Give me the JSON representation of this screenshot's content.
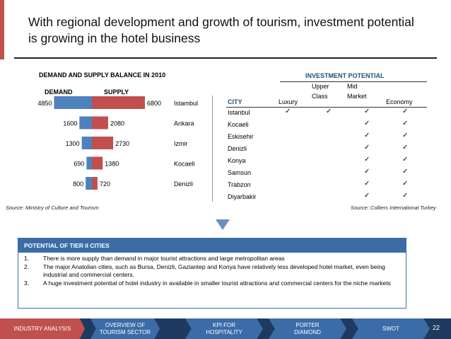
{
  "header": {
    "title": "With regional development and growth of tourism, investment potential is growing in the hotel business"
  },
  "demand_supply": {
    "title": "DEMAND AND SUPPLY BALANCE IN 2010",
    "source": "Source: Ministry of Culture and Tourism"
  },
  "chart_data": {
    "type": "bar",
    "title": "DEMAND AND SUPPLY BALANCE IN 2010",
    "categories": [
      "Istambul",
      "Ankara",
      "Izmir",
      "Kocaeli",
      "Denizli"
    ],
    "series": [
      {
        "name": "DEMAND",
        "values": [
          4850,
          1600,
          1300,
          690,
          800
        ],
        "color": "#4f81bd"
      },
      {
        "name": "SUPPLY",
        "values": [
          6800,
          2080,
          2730,
          1380,
          720
        ],
        "color": "#c0504d"
      }
    ]
  },
  "investment": {
    "title": "INVESTMENT POTENTIAL",
    "headers": {
      "city": "CITY",
      "luxury": "Luxury",
      "upper1": "Upper",
      "upper2": "Class",
      "mid1": "Mid",
      "mid2": "Market",
      "economy": "Economy"
    },
    "check_glyph": "✓",
    "rows": [
      {
        "city": "Istanbul",
        "luxury": true,
        "upper": true,
        "mid": true,
        "economy": true
      },
      {
        "city": "Kocaeli",
        "luxury": false,
        "upper": false,
        "mid": true,
        "economy": true
      },
      {
        "city": "Eskisehir",
        "luxury": false,
        "upper": false,
        "mid": true,
        "economy": true
      },
      {
        "city": "Denizli",
        "luxury": false,
        "upper": false,
        "mid": true,
        "economy": true
      },
      {
        "city": "Konya",
        "luxury": false,
        "upper": false,
        "mid": true,
        "economy": true
      },
      {
        "city": "Samsun",
        "luxury": false,
        "upper": false,
        "mid": true,
        "economy": true
      },
      {
        "city": "Trabzon",
        "luxury": false,
        "upper": false,
        "mid": true,
        "economy": true
      },
      {
        "city": "Diyarbakir",
        "luxury": false,
        "upper": false,
        "mid": true,
        "economy": true
      }
    ],
    "source": "Source: Colliers International Turkey"
  },
  "tier": {
    "header": "POTENTIAL OF TIER II CITIES",
    "items": [
      {
        "num": "1.",
        "text": "There is more supply than demand in major tourist attractions and large metropolitan areas"
      },
      {
        "num": "2.",
        "text": "The major Anatolian cities, such as Bursa, Denizli, Gaziantep and Konya have relatively less developed hotel market, even being industrial and commercial centers."
      },
      {
        "num": "3.",
        "text": "A huge investment potential of hotel industry in available in smaller tourist attractions and commercial centers for the niche markets"
      }
    ]
  },
  "footer": {
    "tabs": [
      {
        "label": "INDUSTRY ANALYSIS"
      },
      {
        "label": "OVERVIEW OF TOURISM SECTOR"
      },
      {
        "label": "KPI FOR HOSPITALITY"
      },
      {
        "label": "PORTER DIAMOND"
      },
      {
        "label": "SWOT"
      }
    ],
    "page_number": "22"
  },
  "colors": {
    "accent_red": "#c0504d",
    "accent_blue": "#4f81bd",
    "navy": "#1f3a60",
    "tab_blue": "#3b6ca8"
  }
}
